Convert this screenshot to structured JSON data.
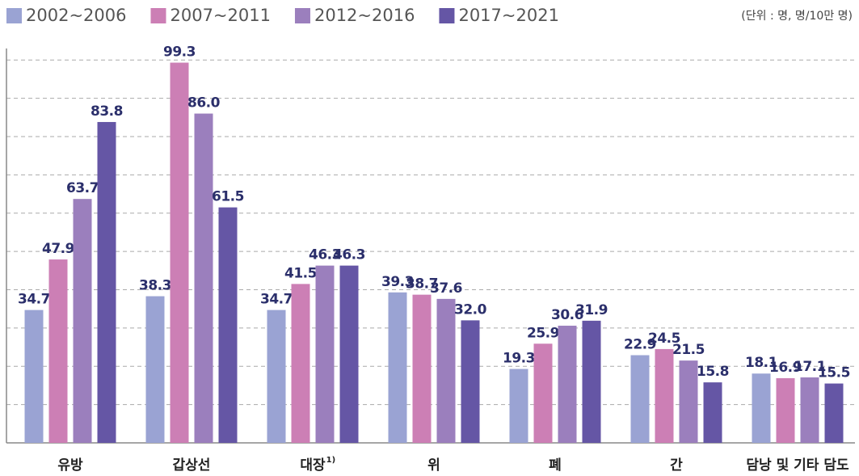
{
  "chart_data": {
    "type": "bar",
    "unit_note": "(단위 : 명, 명/10만 명)",
    "categories": [
      "유방",
      "갑상선",
      "대장",
      "위",
      "폐",
      "간",
      "담낭 및 기타 담도"
    ],
    "category_superscripts": [
      null,
      null,
      "1)",
      null,
      null,
      null,
      null
    ],
    "series": [
      {
        "name": "2002~2006",
        "color": "#9aa3d3",
        "values": [
          34.7,
          38.3,
          34.7,
          39.3,
          19.3,
          22.9,
          18.1
        ],
        "value_labels": [
          "34.7",
          "38.3",
          "34.7",
          "39.3",
          "19.3",
          "22.9",
          "18.1"
        ]
      },
      {
        "name": "2007~2011",
        "color": "#cc7fb5",
        "values": [
          47.9,
          99.3,
          41.5,
          38.7,
          25.9,
          24.5,
          16.9
        ],
        "value_labels": [
          "47.9",
          "99.3",
          "41.5",
          "38.7",
          "25.9",
          "24.5",
          "16.9"
        ]
      },
      {
        "name": "2012~2016",
        "color": "#9b7fbd",
        "values": [
          63.7,
          86.0,
          46.3,
          37.6,
          30.6,
          21.5,
          17.1
        ],
        "value_labels": [
          "63.7",
          "86.0",
          "46.3",
          "37.6",
          "30.6",
          "21.5",
          "17.1"
        ]
      },
      {
        "name": "2017~2021",
        "color": "#6556a5",
        "values": [
          83.8,
          61.5,
          46.3,
          32.0,
          31.9,
          15.8,
          15.5
        ],
        "value_labels": [
          "83.8",
          "61.5",
          "46.3",
          "32.0",
          "31.9",
          "15.8",
          "15.5"
        ]
      }
    ],
    "ylim": [
      0,
      103
    ],
    "yticks": [
      10,
      20,
      30,
      40,
      50,
      60,
      70,
      80,
      90,
      100
    ],
    "grid": true,
    "show_tick_labels": false,
    "legend": "top-left"
  }
}
